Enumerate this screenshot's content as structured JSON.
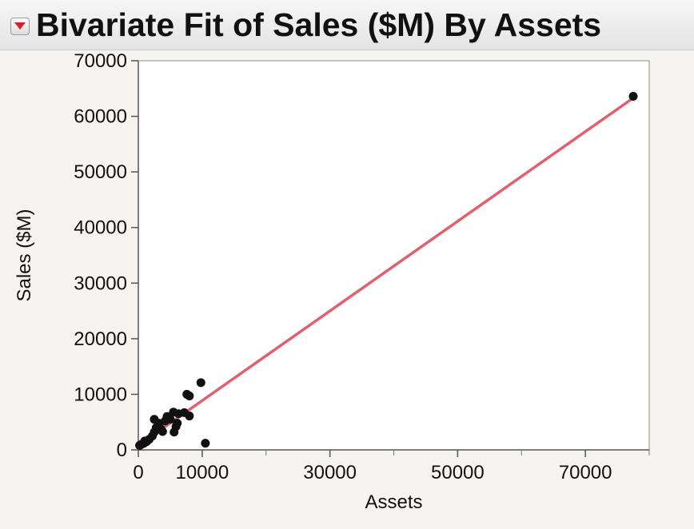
{
  "header": {
    "title": "Bivariate Fit of Sales ($M) By Assets"
  },
  "colors": {
    "fit_line": "#e0606e",
    "points": "#111111",
    "plot_bg": "#ffffff",
    "gridline": "#d9d9d9"
  },
  "icons": {
    "disclosure": "red-triangle-menu-icon"
  },
  "chart_data": {
    "type": "scatter",
    "title": "Bivariate Fit of Sales ($M) By Assets",
    "xlabel": "Assets",
    "ylabel": "Sales ($M)",
    "xlim": [
      0,
      80000
    ],
    "ylim": [
      0,
      70000
    ],
    "x_ticks": [
      0,
      10000,
      30000,
      50000,
      70000
    ],
    "x_minor_ticks": [
      20000,
      40000,
      60000,
      80000
    ],
    "y_ticks": [
      0,
      10000,
      20000,
      30000,
      40000,
      50000,
      60000,
      70000
    ],
    "grid": false,
    "points": [
      {
        "x": 200,
        "y": 800
      },
      {
        "x": 500,
        "y": 1000
      },
      {
        "x": 900,
        "y": 1200
      },
      {
        "x": 1300,
        "y": 1500
      },
      {
        "x": 1700,
        "y": 1900
      },
      {
        "x": 1000,
        "y": 1600
      },
      {
        "x": 2200,
        "y": 2500
      },
      {
        "x": 2500,
        "y": 3200
      },
      {
        "x": 2800,
        "y": 4000
      },
      {
        "x": 2500,
        "y": 5500
      },
      {
        "x": 3200,
        "y": 4800
      },
      {
        "x": 3500,
        "y": 3800
      },
      {
        "x": 3800,
        "y": 3300
      },
      {
        "x": 4200,
        "y": 5200
      },
      {
        "x": 4500,
        "y": 6000
      },
      {
        "x": 5000,
        "y": 5500
      },
      {
        "x": 5500,
        "y": 6800
      },
      {
        "x": 5600,
        "y": 3200
      },
      {
        "x": 5900,
        "y": 4200
      },
      {
        "x": 6100,
        "y": 4800
      },
      {
        "x": 6300,
        "y": 6500
      },
      {
        "x": 7200,
        "y": 6700
      },
      {
        "x": 7600,
        "y": 10000
      },
      {
        "x": 8000,
        "y": 9700
      },
      {
        "x": 8000,
        "y": 6100
      },
      {
        "x": 9800,
        "y": 12100
      },
      {
        "x": 10500,
        "y": 1200
      },
      {
        "x": 77500,
        "y": 63600
      }
    ],
    "fit_line": {
      "x": [
        0,
        77500
      ],
      "y": [
        800,
        63300
      ]
    }
  }
}
